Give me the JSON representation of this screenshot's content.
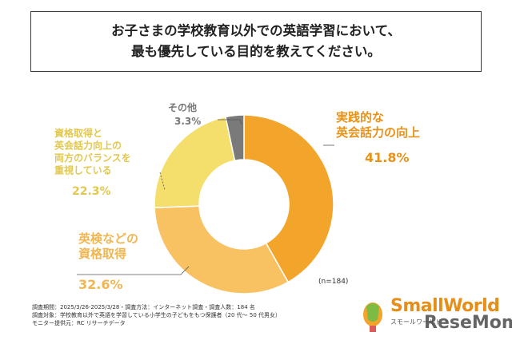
{
  "title": {
    "line1": "お子さまの学校教育以外での英語学習において、",
    "line2": "最も優先している目的を教えてください。"
  },
  "chart_data": {
    "type": "pie",
    "donut": true,
    "categories": [
      "実践的な英会話力の向上",
      "英検などの資格取得",
      "資格取得と英会話力向上の両方のバランスを重視している",
      "その他"
    ],
    "values": [
      41.8,
      32.6,
      22.3,
      3.3
    ],
    "value_labels": [
      "41.8%",
      "32.6%",
      "22.3%",
      "3.3%"
    ],
    "colors": [
      "#f3a42b",
      "#f8c162",
      "#f4df6d",
      "#7a7a7a"
    ],
    "label_colors": [
      "#e99218",
      "#f0b652",
      "#e2c84e",
      "#777777"
    ],
    "label_lines": [
      [
        "実践的な",
        "英会話力の向上"
      ],
      [
        "英検などの",
        "資格取得"
      ],
      [
        "資格取得と",
        "英会話力向上の",
        "両方のバランスを",
        "重視している"
      ],
      [
        "その他"
      ]
    ]
  },
  "sample_size": "(n=184)",
  "footer": {
    "line1": "調査期間：2025/3/26-2025/3/28・調査方法：インターネット調査・調査人数：184 名",
    "line2": "調査対象：学校教育以外で英語を学習している小学生の子どもをもつ保護者（20 代〜 50 代男女）",
    "line3": "モニター提供元：RC リサーチデータ"
  },
  "logo": {
    "name": "SmallWorld",
    "sub": "スモールワールド"
  },
  "watermark": "ReseMom"
}
